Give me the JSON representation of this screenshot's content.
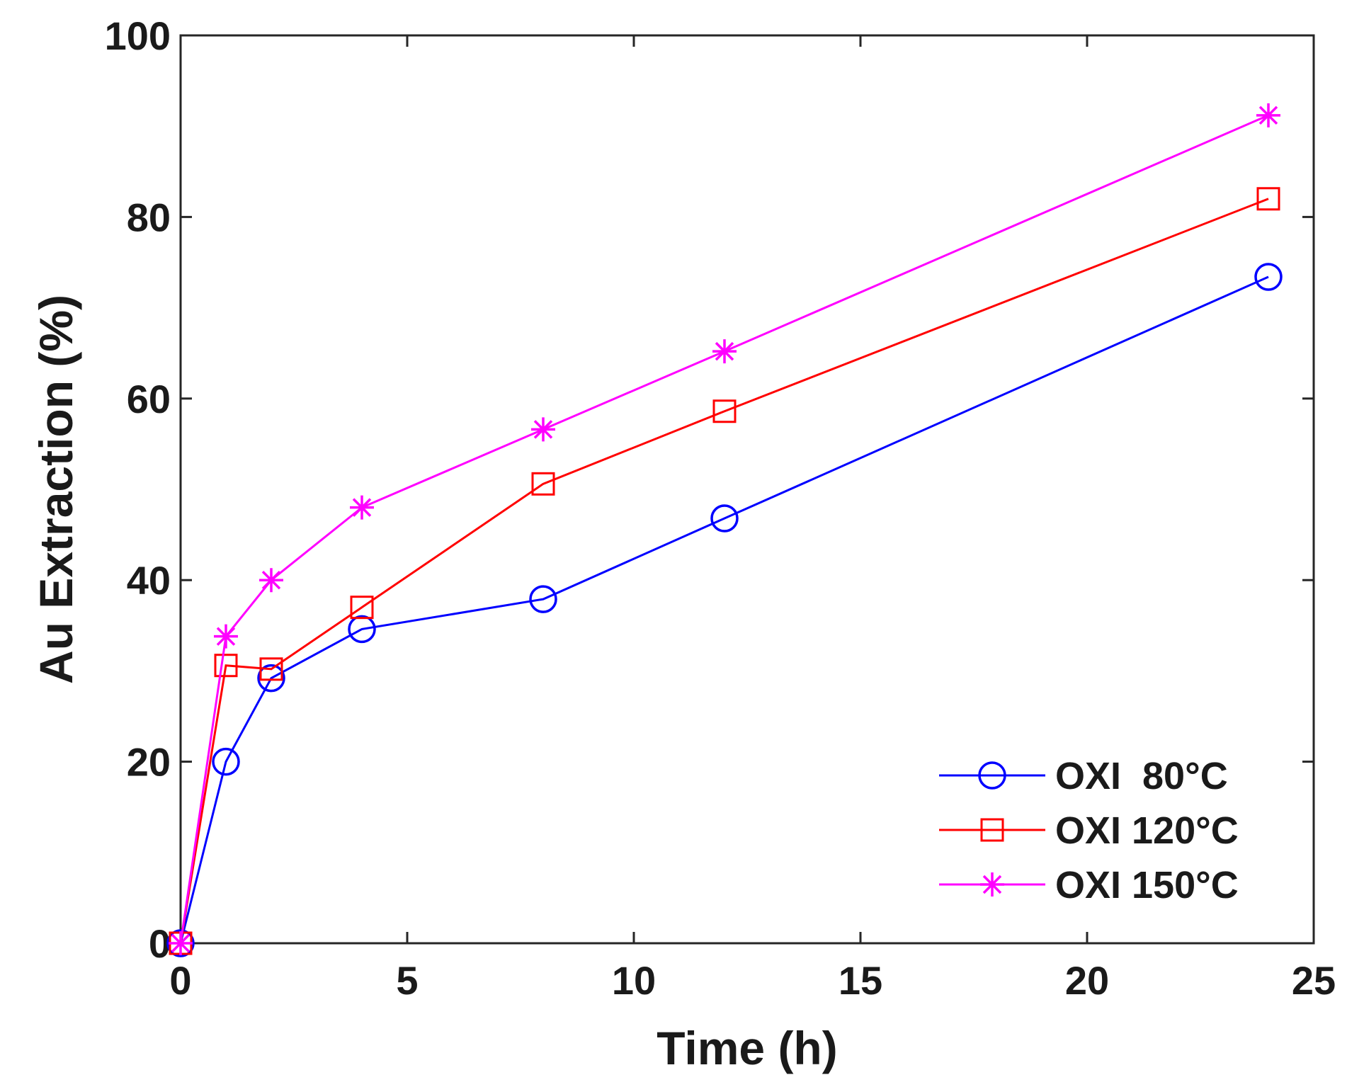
{
  "chart_data": {
    "type": "line",
    "title": "",
    "xlabel": "Time (h)",
    "ylabel": "Au Extraction (%)",
    "xlim": [
      0,
      25
    ],
    "ylim": [
      0,
      100
    ],
    "xticks": [
      0,
      5,
      10,
      15,
      20,
      25
    ],
    "yticks": [
      0,
      20,
      40,
      60,
      80,
      100
    ],
    "grid": false,
    "legend_position": "bottom-right",
    "x": [
      0,
      1,
      2,
      4,
      8,
      12,
      24
    ],
    "series": [
      {
        "name": "OXI  80°C",
        "color": "#0000ff",
        "marker": "circle",
        "values": [
          0,
          20,
          29.2,
          34.6,
          37.9,
          46.8,
          73.4
        ]
      },
      {
        "name": "OXI 120°C",
        "color": "#ff0000",
        "marker": "square",
        "values": [
          0,
          30.6,
          30.2,
          37,
          50.6,
          58.6,
          82
        ]
      },
      {
        "name": "OXI 150°C",
        "color": "#ff00ff",
        "marker": "asterisk",
        "values": [
          0,
          33.8,
          40,
          48,
          56.6,
          65.2,
          91.2
        ]
      }
    ]
  }
}
